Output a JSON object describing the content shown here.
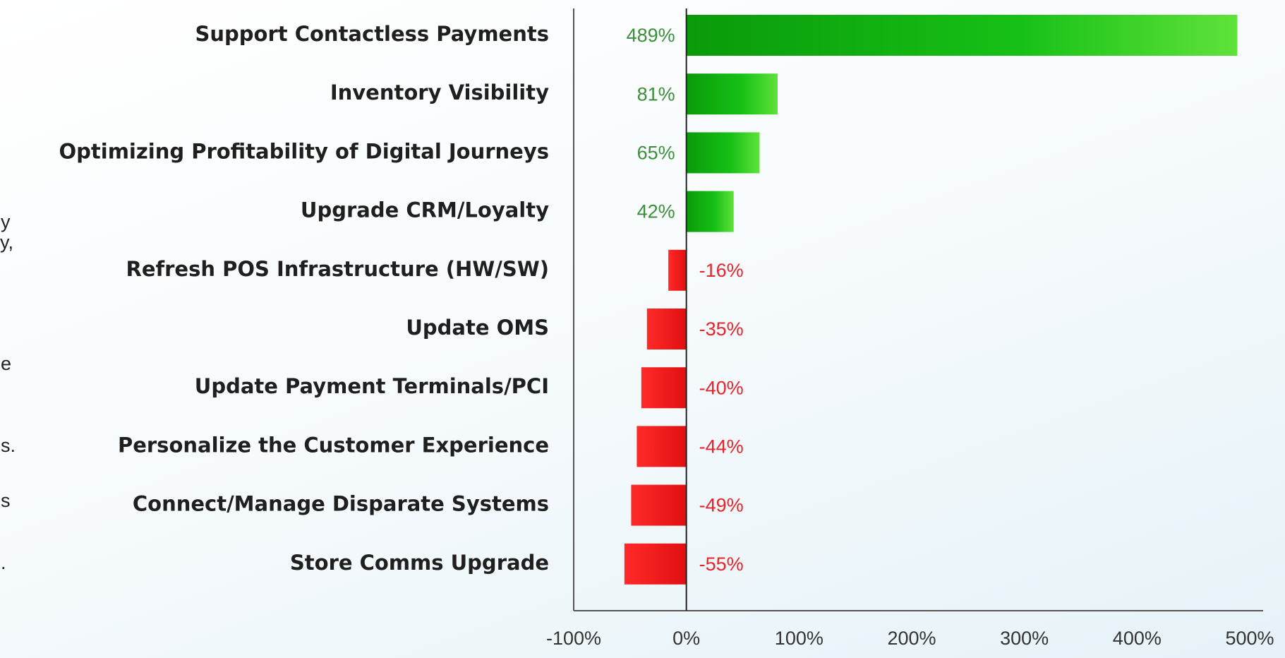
{
  "chart_data": {
    "type": "bar",
    "orientation": "horizontal",
    "categories": [
      "Support Contactless Payments",
      "Inventory Visibility",
      "Optimizing Profitability of Digital Journeys",
      "Upgrade CRM/Loyalty",
      "Refresh POS Infrastructure (HW/SW)",
      "Update OMS",
      "Update Payment Terminals/PCI",
      "Personalize the Customer Experience",
      "Connect/Manage Disparate Systems",
      "Store Comms Upgrade"
    ],
    "values": [
      489,
      81,
      65,
      42,
      -16,
      -35,
      -40,
      -44,
      -49,
      -55
    ],
    "value_labels": [
      "489%",
      "81%",
      "65%",
      "42%",
      "-16%",
      "-35%",
      "-40%",
      "-44%",
      "-49%",
      "-55%"
    ],
    "positive_color": "#1fb81f",
    "negative_color": "#ee1c24",
    "positive_label_color": "#3b8f3b",
    "negative_label_color": "#e8232a",
    "xlim": [
      -100,
      500
    ],
    "xticks": [
      {
        "value": -100,
        "label": "-100%"
      },
      {
        "value": 0,
        "label": "0%"
      },
      {
        "value": 100,
        "label": "100%"
      },
      {
        "value": 200,
        "label": "200%"
      },
      {
        "value": 300,
        "label": "300%"
      },
      {
        "value": 400,
        "label": "400%"
      },
      {
        "value": 500,
        "label": "500%"
      }
    ],
    "grid": false
  },
  "side_text": [
    "y",
    "y,",
    "e",
    "s.",
    "s",
    "."
  ]
}
